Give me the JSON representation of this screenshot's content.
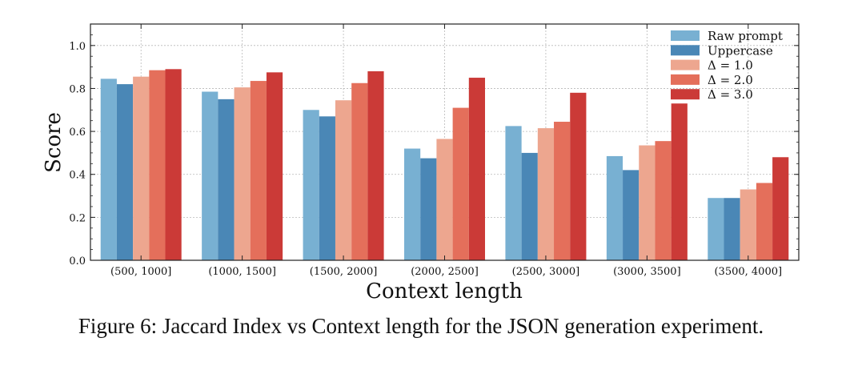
{
  "chart_data": {
    "type": "bar",
    "title": "",
    "xlabel": "Context length",
    "ylabel": "Score",
    "ylim": [
      0,
      1.1
    ],
    "yticks": [
      0.0,
      0.2,
      0.4,
      0.6,
      0.8,
      1.0
    ],
    "ytick_labels": [
      "0.0",
      "0.2",
      "0.4",
      "0.6",
      "0.8",
      "1.0"
    ],
    "grid": true,
    "legend_position": "top-right",
    "categories": [
      "(500, 1000]",
      "(1000, 1500]",
      "(1500, 2000]",
      "(2000, 2500]",
      "(2500, 3000]",
      "(3000, 3500]",
      "(3500, 4000]"
    ],
    "series": [
      {
        "name": "Raw prompt",
        "color": "#78b0d2",
        "values": [
          0.845,
          0.785,
          0.7,
          0.52,
          0.625,
          0.485,
          0.29
        ]
      },
      {
        "name": "Uppercase",
        "color": "#4a87b6",
        "values": [
          0.82,
          0.75,
          0.67,
          0.475,
          0.5,
          0.42,
          0.29
        ]
      },
      {
        "name": "Δ = 1.0",
        "color": "#eda68f",
        "values": [
          0.855,
          0.805,
          0.745,
          0.565,
          0.615,
          0.535,
          0.33
        ]
      },
      {
        "name": "Δ = 2.0",
        "color": "#e46f5b",
        "values": [
          0.885,
          0.835,
          0.825,
          0.71,
          0.645,
          0.555,
          0.36
        ]
      },
      {
        "name": "Δ = 3.0",
        "color": "#cb3a37",
        "values": [
          0.89,
          0.875,
          0.88,
          0.85,
          0.78,
          0.73,
          0.48
        ]
      }
    ]
  },
  "caption": "Figure 6: Jaccard Index vs Context length for the JSON generation experiment."
}
